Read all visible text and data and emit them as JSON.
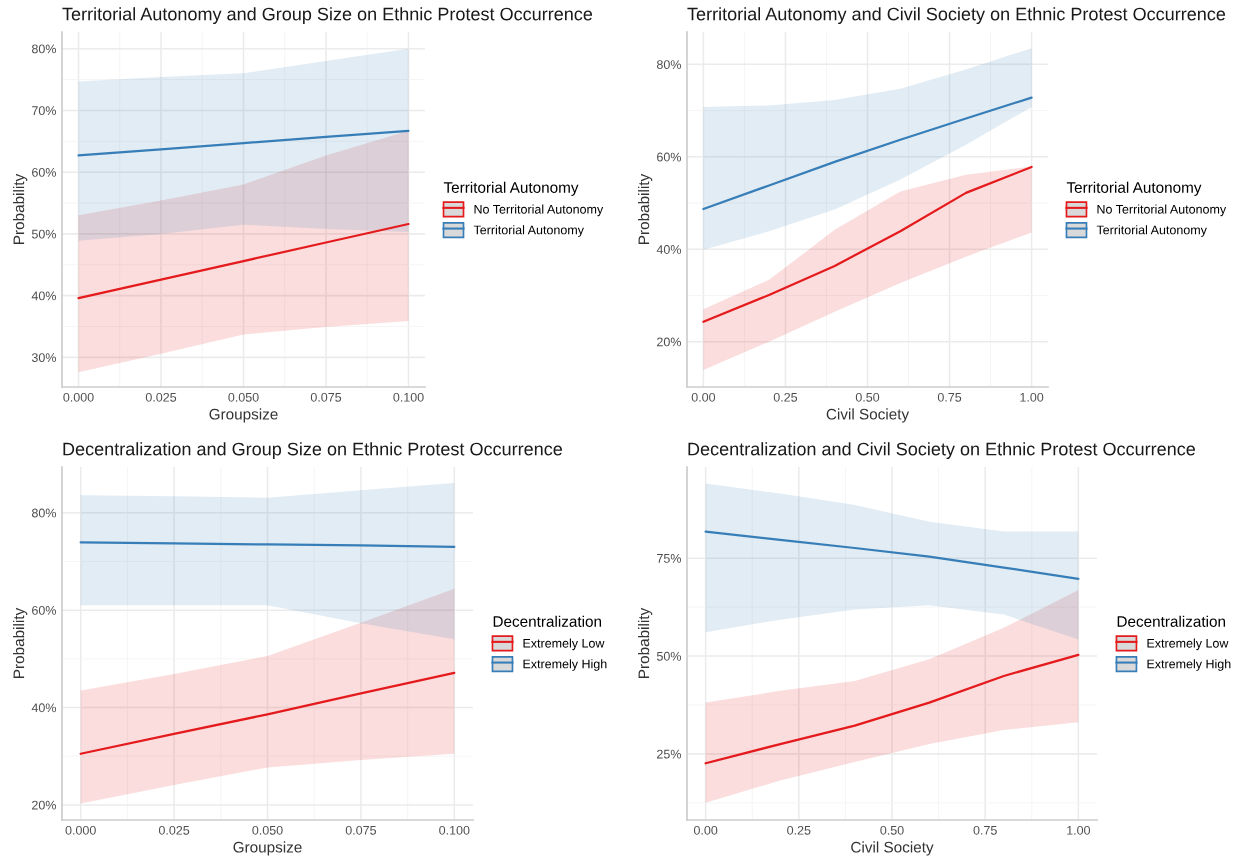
{
  "chart_data": [
    {
      "type": "line",
      "title": "Territorial Autonomy and Group Size on Ethnic Protest Occurrence",
      "xlabel": "Groupsize",
      "ylabel": "Probability",
      "legend_title": "Territorial Autonomy",
      "legend": "right",
      "grid": true,
      "xlim": [
        -0.005,
        0.105
      ],
      "xticks": [
        {
          "value": 0,
          "label": "0.000"
        },
        {
          "value": 0.025,
          "label": "0.025"
        },
        {
          "value": 0.05,
          "label": "0.050"
        },
        {
          "value": 0.075,
          "label": "0.075"
        },
        {
          "value": 0.1,
          "label": "0.100"
        }
      ],
      "ylim": [
        25.2,
        82.7
      ],
      "yticks": [
        {
          "value": 30,
          "label": "30%"
        },
        {
          "value": 40,
          "label": "40%"
        },
        {
          "value": 50,
          "label": "50%"
        },
        {
          "value": 60,
          "label": "60%"
        },
        {
          "value": 70,
          "label": "70%"
        },
        {
          "value": 80,
          "label": "80%"
        }
      ],
      "series": [
        {
          "name": "No Territorial Autonomy",
          "color": "#e41a1c",
          "x": [
            0,
            0.025,
            0.05,
            0.075,
            0.1
          ],
          "values": [
            39.6,
            42.6,
            45.6,
            48.6,
            51.6
          ],
          "lower": [
            27.6,
            30.6,
            33.7,
            34.9,
            35.9
          ],
          "upper": [
            53.0,
            55.4,
            58.0,
            62.7,
            66.7
          ]
        },
        {
          "name": "Territorial Autonomy",
          "color": "#377eb8",
          "x": [
            0,
            0.025,
            0.05,
            0.075,
            0.1
          ],
          "values": [
            62.7,
            63.7,
            64.7,
            65.7,
            66.7
          ],
          "lower": [
            48.9,
            50.0,
            51.5,
            50.8,
            50.3
          ],
          "upper": [
            74.7,
            75.4,
            76.0,
            78.0,
            80.0
          ]
        }
      ]
    },
    {
      "type": "line",
      "title": "Territorial Autonomy and Civil Society on Ethnic Protest Occurrence",
      "xlabel": "Civil Society",
      "ylabel": "Probability",
      "legend_title": "Territorial Autonomy",
      "legend": "right",
      "grid": true,
      "xlim": [
        -0.05,
        1.05
      ],
      "xticks": [
        {
          "value": 0,
          "label": "0.00"
        },
        {
          "value": 0.25,
          "label": "0.25"
        },
        {
          "value": 0.5,
          "label": "0.50"
        },
        {
          "value": 0.75,
          "label": "0.75"
        },
        {
          "value": 1,
          "label": "1.00"
        }
      ],
      "ylim": [
        10.2,
        87.0
      ],
      "yticks": [
        {
          "value": 20,
          "label": "20%"
        },
        {
          "value": 40,
          "label": "40%"
        },
        {
          "value": 60,
          "label": "60%"
        },
        {
          "value": 80,
          "label": "80%"
        }
      ],
      "series": [
        {
          "name": "No Territorial Autonomy",
          "color": "#e41a1c",
          "x": [
            0,
            0.2,
            0.4,
            0.6,
            0.8,
            1
          ],
          "values": [
            24.3,
            30.1,
            36.4,
            43.9,
            52.2,
            57.8
          ],
          "lower": [
            13.9,
            20.0,
            26.5,
            32.7,
            38.4,
            43.6
          ],
          "upper": [
            27.0,
            33.4,
            44.2,
            52.5,
            56.1,
            57.9
          ]
        },
        {
          "name": "Territorial Autonomy",
          "color": "#377eb8",
          "x": [
            0,
            0.2,
            0.4,
            0.6,
            0.8,
            1
          ],
          "values": [
            48.7,
            53.8,
            58.9,
            63.7,
            68.3,
            72.8
          ],
          "lower": [
            39.9,
            43.9,
            48.6,
            55.1,
            62.6,
            70.8
          ],
          "upper": [
            70.8,
            71.1,
            72.3,
            74.7,
            78.9,
            83.5
          ]
        }
      ]
    },
    {
      "type": "line",
      "title": "Decentralization and Group Size on Ethnic Protest Occurrence",
      "xlabel": "Groupsize",
      "ylabel": "Probability",
      "legend_title": "Decentralization",
      "legend": "right",
      "grid": true,
      "xlim": [
        -0.005,
        0.105
      ],
      "xticks": [
        {
          "value": 0,
          "label": "0.000"
        },
        {
          "value": 0.025,
          "label": "0.025"
        },
        {
          "value": 0.05,
          "label": "0.050"
        },
        {
          "value": 0.075,
          "label": "0.075"
        },
        {
          "value": 0.1,
          "label": "0.100"
        }
      ],
      "ylim": [
        16.9,
        89.4
      ],
      "yticks": [
        {
          "value": 20,
          "label": "20%"
        },
        {
          "value": 40,
          "label": "40%"
        },
        {
          "value": 60,
          "label": "60%"
        },
        {
          "value": 80,
          "label": "80%"
        }
      ],
      "series": [
        {
          "name": "Extremely Low",
          "color": "#e41a1c",
          "x": [
            0,
            0.025,
            0.05,
            0.075,
            0.1
          ],
          "values": [
            30.5,
            34.6,
            38.6,
            42.9,
            47.1
          ],
          "lower": [
            20.3,
            24.1,
            27.7,
            29.2,
            30.5
          ],
          "upper": [
            43.5,
            46.9,
            50.6,
            57.4,
            64.4
          ]
        },
        {
          "name": "Extremely High",
          "color": "#377eb8",
          "x": [
            0,
            0.025,
            0.05,
            0.075,
            0.1
          ],
          "values": [
            73.9,
            73.7,
            73.5,
            73.3,
            73.0
          ],
          "lower": [
            61.0,
            61.0,
            61.0,
            57.3,
            54.0
          ],
          "upper": [
            83.6,
            83.4,
            83.1,
            84.6,
            86.1
          ]
        }
      ]
    },
    {
      "type": "line",
      "title": "Decentralization and Civil Society on Ethnic Protest Occurrence",
      "xlabel": "Civil Society",
      "ylabel": "Probability",
      "legend_title": "Decentralization",
      "legend": "right",
      "grid": true,
      "xlim": [
        -0.05,
        1.05
      ],
      "xticks": [
        {
          "value": 0,
          "label": "0.00"
        },
        {
          "value": 0.25,
          "label": "0.25"
        },
        {
          "value": 0.5,
          "label": "0.50"
        },
        {
          "value": 0.75,
          "label": "0.75"
        },
        {
          "value": 1,
          "label": "1.00"
        }
      ],
      "ylim": [
        8.1,
        98.3
      ],
      "yticks": [
        {
          "value": 25,
          "label": "25%"
        },
        {
          "value": 50,
          "label": "50%"
        },
        {
          "value": 75,
          "label": "75%"
        }
      ],
      "series": [
        {
          "name": "Extremely Low",
          "color": "#e41a1c",
          "x": [
            0,
            0.2,
            0.4,
            0.6,
            0.8,
            1
          ],
          "values": [
            22.6,
            27.5,
            32.2,
            38.1,
            44.9,
            50.3
          ],
          "lower": [
            12.5,
            18.2,
            22.9,
            27.5,
            31.1,
            33.1
          ],
          "upper": [
            38.1,
            41.1,
            43.6,
            49.2,
            57.2,
            66.9
          ]
        },
        {
          "name": "Extremely High",
          "color": "#377eb8",
          "x": [
            0,
            0.2,
            0.4,
            0.6,
            0.8,
            1
          ],
          "values": [
            81.8,
            79.7,
            77.6,
            75.4,
            72.6,
            69.7
          ],
          "lower": [
            56.1,
            59.3,
            61.9,
            63.0,
            60.6,
            54.2
          ],
          "upper": [
            94.1,
            91.5,
            88.6,
            84.3,
            81.8,
            81.8
          ]
        }
      ]
    }
  ]
}
